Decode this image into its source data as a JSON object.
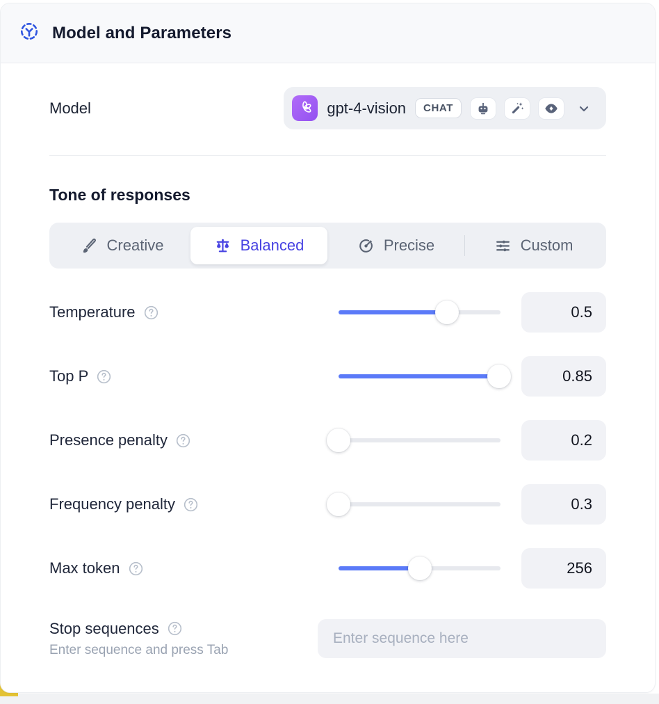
{
  "header": {
    "title": "Model and Parameters",
    "icon": "model-scope-icon"
  },
  "model_row": {
    "label": "Model",
    "model_name": "gpt-4-vision",
    "type_badge": "CHAT",
    "capability_icons": [
      "robot-icon",
      "magic-wand-icon",
      "eye-icon"
    ],
    "logo_icon": "openai-logo"
  },
  "tone": {
    "heading": "Tone of responses",
    "tabs": [
      {
        "label": "Creative",
        "icon": "paintbrush-icon",
        "selected": false
      },
      {
        "label": "Balanced",
        "icon": "scale-icon",
        "selected": true
      },
      {
        "label": "Precise",
        "icon": "target-icon",
        "selected": false
      },
      {
        "label": "Custom",
        "icon": "sliders-icon",
        "selected": false
      }
    ],
    "separator_before": "Custom"
  },
  "parameters": [
    {
      "label": "Temperature",
      "value": "0.5",
      "slider_fill": 0.67,
      "has_help": true
    },
    {
      "label": "Top P",
      "value": "0.85",
      "slider_fill": 0.99,
      "has_help": true
    },
    {
      "label": "Presence penalty",
      "value": "0.2",
      "slider_fill": 0.0,
      "has_help": true
    },
    {
      "label": "Frequency penalty",
      "value": "0.3",
      "slider_fill": 0.0,
      "has_help": true
    },
    {
      "label": "Max token",
      "value": "256",
      "slider_fill": 0.5,
      "has_help": true
    }
  ],
  "stop_sequences": {
    "label": "Stop sequences",
    "hint": "Enter sequence and press Tab",
    "placeholder": "Enter sequence here",
    "value": ""
  },
  "colors": {
    "accent_indigo": "#4742e2",
    "slider_blue": "#5b7af8",
    "header_icon_blue": "#2f55e0",
    "model_logo_purple": "#9f5cf4",
    "header_bg": "#f8f9fb",
    "pill_bg": "#eef0f4",
    "field_bg": "#f1f2f6"
  }
}
